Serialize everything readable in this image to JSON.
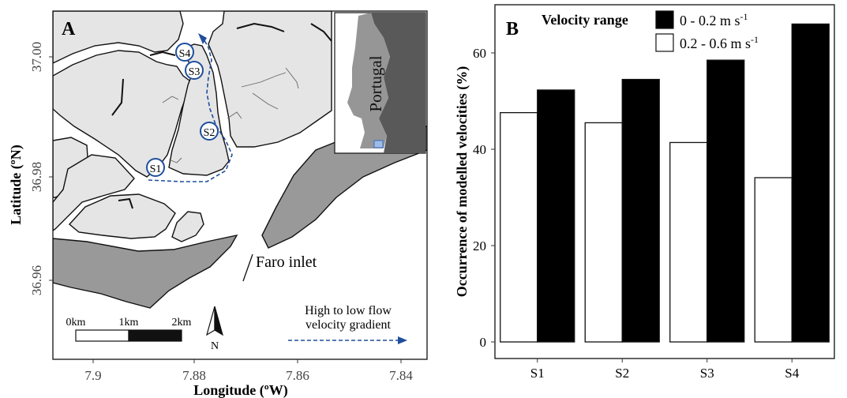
{
  "panel_a": {
    "label": "A",
    "xlabel": "Longitude (ºW)",
    "ylabel": "Latitude (ºN)",
    "x_ticks": [
      "7.9",
      "7.88",
      "7.86",
      "7.84"
    ],
    "y_ticks": [
      "36.96",
      "36.98",
      "37.00"
    ],
    "stations": [
      "S1",
      "S2",
      "S3",
      "S4"
    ],
    "inset_label": "Portugal",
    "place_label": "Faro inlet",
    "scale_labels": [
      "0km",
      "1km",
      "2km"
    ],
    "north_label": "N",
    "gradient_label_line1": "High to low flow",
    "gradient_label_line2": "velocity gradient",
    "colors": {
      "land": "#e5e5e5",
      "barrier": "#999999",
      "inset_country": "#969696",
      "inset_spain": "#595959",
      "route": "#1f4e9c",
      "marker": "#1f4e9c"
    }
  },
  "chart_data": {
    "type": "bar",
    "panel_label": "B",
    "categories": [
      "S1",
      "S2",
      "S3",
      "S4"
    ],
    "legend_title": "Velocity range",
    "legend_position": "top-right",
    "series": [
      {
        "name": "0 - 0.2 m s",
        "unit_sup": "-1",
        "color": "#000000",
        "values": [
          52.3,
          54.5,
          58.5,
          66.0
        ]
      },
      {
        "name": "0.2 - 0.6 m s",
        "unit_sup": "-1",
        "color": "#ffffff",
        "values": [
          47.6,
          45.5,
          41.4,
          34.1
        ]
      }
    ],
    "xlabel": "",
    "ylabel": "Occurrence of modelled velocities (%)",
    "ylim": [
      0,
      70
    ],
    "yticks": [
      0,
      20,
      40,
      60
    ],
    "grid": false
  }
}
